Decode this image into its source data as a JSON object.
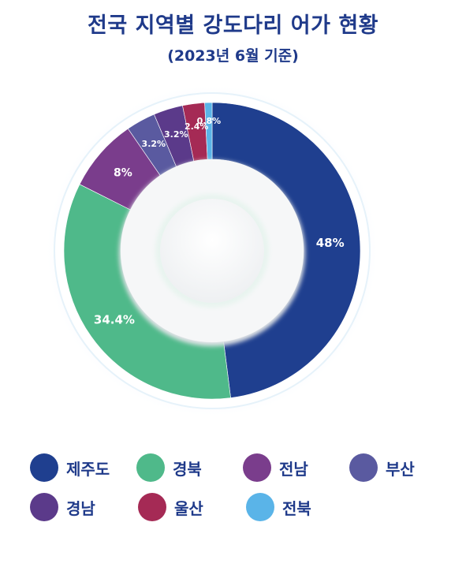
{
  "header": {
    "title": "전국 지역별 강도다리 어가 현황",
    "subtitle": "(2023년 6월 기준)"
  },
  "chart_data": {
    "type": "pie",
    "variant": "donut",
    "title": "전국 지역별 강도다리 어가 현황",
    "subtitle": "(2023년 6월 기준)",
    "legend_position": "bottom",
    "categories": [
      "제주도",
      "경북",
      "전남",
      "부산",
      "경남",
      "울산",
      "전북"
    ],
    "values": [
      48,
      34.4,
      8,
      3.2,
      3.2,
      2.4,
      0.8
    ],
    "labels": [
      "48%",
      "34.4%",
      "8%",
      "3.2%",
      "3.2%",
      "2.4%",
      "0.8%"
    ],
    "colors": [
      "#1f3f8f",
      "#4fb98a",
      "#7a3d8c",
      "#5a5aa0",
      "#5b3a8a",
      "#a52a55",
      "#5ab4e8"
    ]
  }
}
